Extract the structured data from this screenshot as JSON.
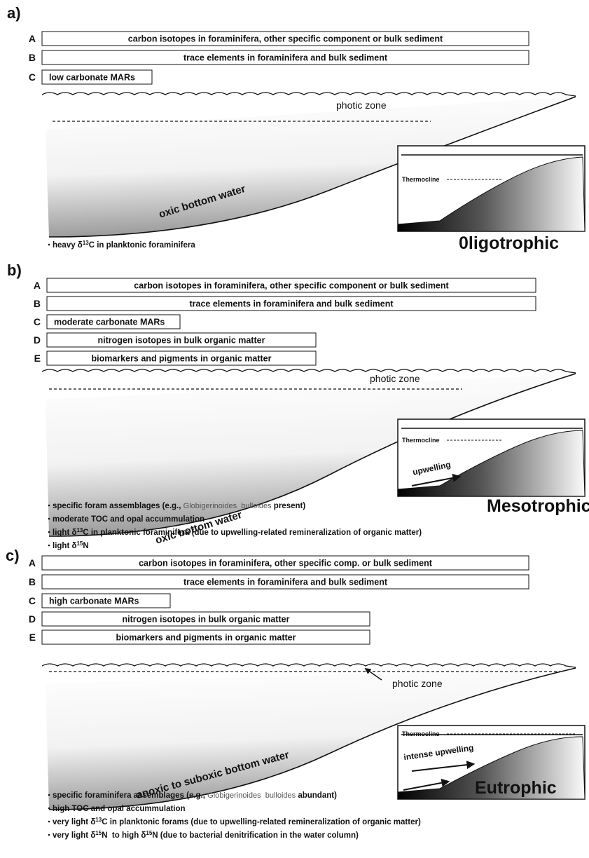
{
  "panels": [
    {
      "label": "a)",
      "rows": [
        {
          "letter": "A",
          "text": "carbon isotopes in foraminifera, other specific component or bulk sediment"
        },
        {
          "letter": "B",
          "text": "trace elements in foraminifera and bulk sediment"
        },
        {
          "letter": "C",
          "text": "low carbonate MARs"
        }
      ],
      "photic_zone": "photic zone",
      "bottom_water": "oxic bottom water",
      "inset": {
        "thermocline": "Thermocline"
      },
      "state": "0ligotrophic",
      "notes": [
        [
          {
            "text": "heavy δ"
          },
          {
            "text": "13",
            "style": "sup"
          },
          {
            "text": "C in planktonic foraminifera"
          }
        ]
      ]
    },
    {
      "label": "b)",
      "rows": [
        {
          "letter": "A",
          "text": "carbon isotopes in foraminifera, other specific component or bulk sediment"
        },
        {
          "letter": "B",
          "text": "trace elements in foraminifera and bulk sediment"
        },
        {
          "letter": "C",
          "text": "moderate carbonate MARs"
        },
        {
          "letter": "D",
          "text": "nitrogen isotopes in bulk organic matter"
        },
        {
          "letter": "E",
          "text": "biomarkers and pigments in organic matter"
        }
      ],
      "photic_zone": "photic zone",
      "bottom_water": "oxic bottom water",
      "inset": {
        "thermocline": "Thermocline",
        "upwelling": "upwelling"
      },
      "state": "Mesotrophic",
      "notes": [
        [
          {
            "text": "specific foram assemblages (e.g., "
          },
          {
            "text": "Globigerinoides  bulloides",
            "style": "species"
          },
          {
            "text": " present)"
          }
        ],
        [
          {
            "text": "moderate TOC and opal accummulation"
          }
        ],
        [
          {
            "text": "light δ"
          },
          {
            "text": "13",
            "style": "sup"
          },
          {
            "text": "C in planktonic foraminifera (due to upwelling-related remineralization of organic matter)"
          }
        ],
        [
          {
            "text": "light δ"
          },
          {
            "text": "15",
            "style": "sup"
          },
          {
            "text": "N"
          }
        ]
      ]
    },
    {
      "label": "c)",
      "rows": [
        {
          "letter": "A",
          "text": "carbon isotopes in foraminifera, other specific comp. or bulk sediment"
        },
        {
          "letter": "B",
          "text": "trace elements in foraminifera and bulk sediment"
        },
        {
          "letter": "C",
          "text": "high carbonate MARs"
        },
        {
          "letter": "D",
          "text": "nitrogen isotopes in bulk organic matter"
        },
        {
          "letter": "E",
          "text": "biomarkers and pigments in organic matter"
        }
      ],
      "photic_zone": "photic zone",
      "bottom_water": "anoxic to suboxic bottom water",
      "inset": {
        "thermocline": "Thermocline",
        "upwelling": "intense upwelling"
      },
      "state": "Eutrophic",
      "notes": [
        [
          {
            "text": "specific foraminifera assemblages (e.g., "
          },
          {
            "text": "Globigerinoides  bulloides",
            "style": "species"
          },
          {
            "text": " abundant)"
          }
        ],
        [
          {
            "text": "high TOC and opal accummulation"
          }
        ],
        [
          {
            "text": "very light δ"
          },
          {
            "text": "13",
            "style": "sup"
          },
          {
            "text": "C in planktonic forams (due to upwelling-related remineralization of organic matter)"
          }
        ],
        [
          {
            "text": "very light δ"
          },
          {
            "text": "15",
            "style": "sup"
          },
          {
            "text": "N  to high δ"
          },
          {
            "text": "15",
            "style": "sup"
          },
          {
            "text": "N (due to bacterial denitrification in the water column)"
          }
        ]
      ]
    }
  ]
}
